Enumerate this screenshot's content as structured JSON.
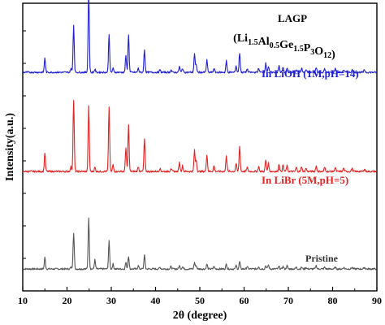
{
  "chart_data": {
    "type": "line",
    "xlabel": "2θ (degree)",
    "ylabel": "Intensity(a.u.)",
    "xlim": [
      10,
      90
    ],
    "x_ticks": [
      "10",
      "20",
      "30",
      "40",
      "50",
      "60",
      "70",
      "80",
      "90"
    ],
    "y_ticks_labeled": false,
    "legend_position": "inline labels, right side",
    "annotations": {
      "title_line1": "LAGP",
      "formula": {
        "open": "(",
        "parts": [
          {
            "base": "Li",
            "sub": "1.5"
          },
          {
            "base": "Al",
            "sub": "0.5"
          },
          {
            "base": "Ge",
            "sub": "1.5"
          },
          {
            "base": "P",
            "sub": "3"
          },
          {
            "base": "O",
            "sub": "12"
          }
        ],
        "close": ")"
      }
    },
    "peak_positions": [
      15.0,
      20.9,
      21.5,
      24.9,
      26.3,
      29.5,
      30.4,
      33.3,
      33.9,
      36.1,
      37.5,
      41.0,
      43.5,
      45.4,
      46.1,
      48.8,
      49.2,
      51.6,
      53.2,
      56.0,
      58.2,
      59.0,
      60.7,
      63.3,
      64.9,
      65.5,
      67.9,
      68.8,
      69.7,
      71.8,
      73.0,
      74.0,
      76.3,
      78.2,
      80.6,
      82.5,
      84.4,
      87.2
    ],
    "series": [
      {
        "name": "Pristine",
        "color": "#555555",
        "baseline": 0,
        "intensities": [
          14,
          2,
          45,
          62,
          11,
          34,
          6,
          8,
          16,
          4,
          17,
          2,
          3,
          4,
          3,
          8,
          4,
          6,
          3,
          6,
          4,
          9,
          3,
          3,
          4,
          5,
          3,
          3,
          4,
          2,
          2,
          2,
          4,
          2,
          2,
          2,
          2,
          2
        ]
      },
      {
        "name": "In LiBr (5M,pH=5)",
        "color": "#e32222",
        "baseline": 120,
        "intensities": [
          23,
          6,
          88,
          80,
          5,
          79,
          8,
          29,
          57,
          6,
          40,
          4,
          4,
          11,
          7,
          26,
          14,
          21,
          7,
          20,
          10,
          31,
          5,
          6,
          14,
          10,
          9,
          8,
          7,
          5,
          6,
          4,
          7,
          5,
          5,
          4,
          4,
          3
        ]
      },
      {
        "name": "In LiOH (1M,pH=14)",
        "color": "#1f1fd4",
        "baseline": 242,
        "intensities": [
          18,
          5,
          58,
          102,
          4,
          47,
          5,
          20,
          46,
          5,
          28,
          3,
          3,
          7,
          5,
          23,
          9,
          15,
          5,
          14,
          8,
          24,
          4,
          5,
          11,
          7,
          8,
          6,
          5,
          4,
          5,
          3,
          6,
          4,
          5,
          3,
          3,
          3
        ]
      }
    ]
  }
}
